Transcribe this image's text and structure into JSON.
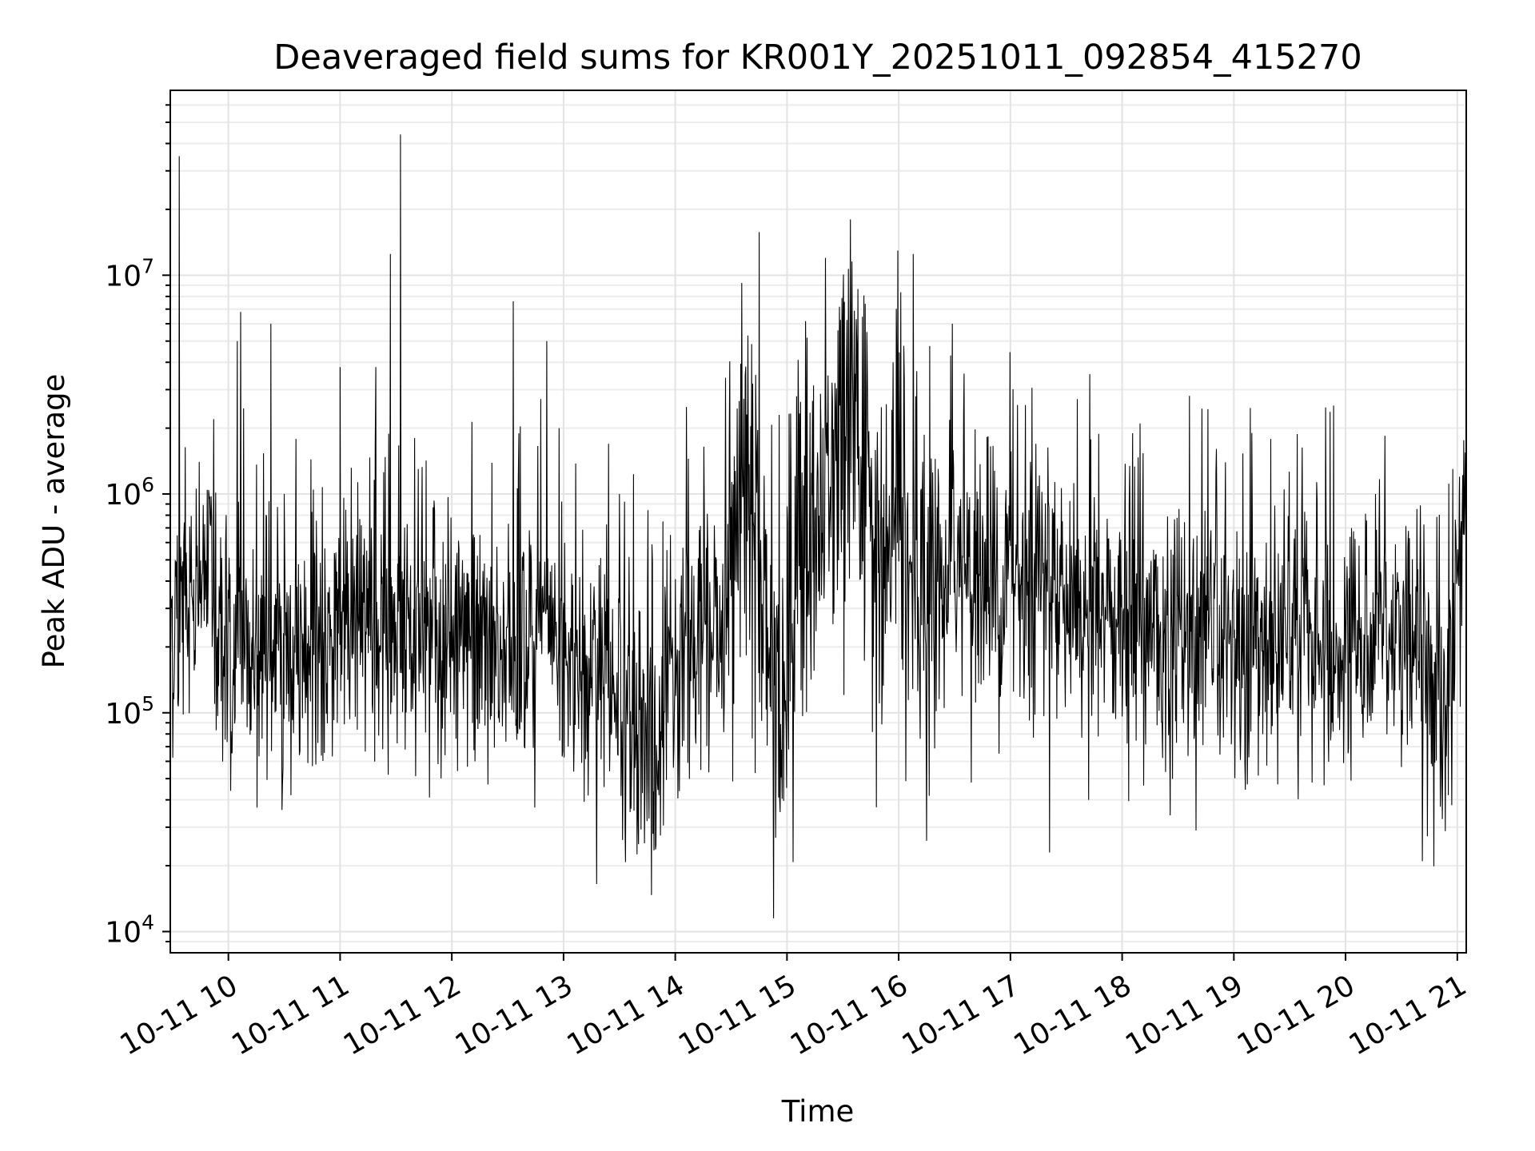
{
  "chart_data": {
    "type": "line",
    "title": "Deaveraged field sums for KR001Y_20251011_092854_415270",
    "xlabel": "Time",
    "ylabel": "Peak ADU - average",
    "yscale": "log",
    "ylim": [
      8000,
      70000000
    ],
    "xlim_hours": [
      9.48,
      21.08
    ],
    "grid": true,
    "x_ticks": [
      {
        "hour": 10,
        "label": "10-11 10"
      },
      {
        "hour": 11,
        "label": "10-11 11"
      },
      {
        "hour": 12,
        "label": "10-11 12"
      },
      {
        "hour": 13,
        "label": "10-11 13"
      },
      {
        "hour": 14,
        "label": "10-11 14"
      },
      {
        "hour": 15,
        "label": "10-11 15"
      },
      {
        "hour": 16,
        "label": "10-11 16"
      },
      {
        "hour": 17,
        "label": "10-11 17"
      },
      {
        "hour": 18,
        "label": "10-11 18"
      },
      {
        "hour": 19,
        "label": "10-11 19"
      },
      {
        "hour": 20,
        "label": "10-11 20"
      },
      {
        "hour": 21,
        "label": "10-11 21"
      }
    ],
    "y_ticks": [
      {
        "value": 10000,
        "base": "10",
        "exp": "4"
      },
      {
        "value": 100000,
        "base": "10",
        "exp": "5"
      },
      {
        "value": 1000000,
        "base": "10",
        "exp": "6"
      },
      {
        "value": 10000000,
        "base": "10",
        "exp": "7"
      }
    ],
    "series": [
      {
        "name": "Peak ADU - average",
        "color": "#000000",
        "baseline": [
          [
            9.48,
            250000
          ],
          [
            9.7,
            350000
          ],
          [
            9.85,
            500000
          ],
          [
            9.95,
            220000
          ],
          [
            10.2,
            200000
          ],
          [
            10.5,
            190000
          ],
          [
            10.8,
            200000
          ],
          [
            11.0,
            280000
          ],
          [
            11.3,
            250000
          ],
          [
            11.6,
            230000
          ],
          [
            11.9,
            190000
          ],
          [
            12.2,
            200000
          ],
          [
            12.5,
            210000
          ],
          [
            12.7,
            280000
          ],
          [
            12.9,
            200000
          ],
          [
            13.1,
            160000
          ],
          [
            13.4,
            150000
          ],
          [
            13.6,
            110000
          ],
          [
            13.8,
            70000
          ],
          [
            14.0,
            160000
          ],
          [
            14.2,
            250000
          ],
          [
            14.4,
            220000
          ],
          [
            14.6,
            800000
          ],
          [
            14.75,
            500000
          ],
          [
            14.85,
            150000
          ],
          [
            14.95,
            90000
          ],
          [
            15.1,
            450000
          ],
          [
            15.3,
            700000
          ],
          [
            15.5,
            1500000
          ],
          [
            15.65,
            1500000
          ],
          [
            15.8,
            400000
          ],
          [
            16.0,
            800000
          ],
          [
            16.2,
            250000
          ],
          [
            16.4,
            450000
          ],
          [
            16.6,
            550000
          ],
          [
            16.8,
            350000
          ],
          [
            17.0,
            450000
          ],
          [
            17.2,
            450000
          ],
          [
            17.5,
            350000
          ],
          [
            17.8,
            300000
          ],
          [
            18.0,
            250000
          ],
          [
            18.3,
            230000
          ],
          [
            18.6,
            200000
          ],
          [
            18.9,
            200000
          ],
          [
            19.2,
            200000
          ],
          [
            19.5,
            210000
          ],
          [
            19.8,
            220000
          ],
          [
            20.1,
            190000
          ],
          [
            20.3,
            350000
          ],
          [
            20.55,
            200000
          ],
          [
            20.8,
            150000
          ],
          [
            20.95,
            100000
          ],
          [
            21.0,
            500000
          ],
          [
            21.08,
            700000
          ]
        ],
        "spikes": [
          [
            9.56,
            35000000
          ],
          [
            9.6,
            600000
          ],
          [
            9.83,
            950000
          ],
          [
            10.08,
            5000000
          ],
          [
            10.11,
            6800000
          ],
          [
            10.38,
            6000000
          ],
          [
            10.5,
            1000000
          ],
          [
            10.56,
            42000
          ],
          [
            11.0,
            3800000
          ],
          [
            11.32,
            3800000
          ],
          [
            11.45,
            12500000
          ],
          [
            11.54,
            44000000
          ],
          [
            11.7,
            1300000
          ],
          [
            11.8,
            41000
          ],
          [
            12.55,
            7600000
          ],
          [
            12.85,
            5000000
          ],
          [
            12.96,
            2000000
          ],
          [
            13.5,
            1000000
          ],
          [
            13.8,
            28000
          ],
          [
            14.1,
            2500000
          ],
          [
            14.45,
            3400000
          ],
          [
            14.65,
            5300000
          ],
          [
            14.72,
            3500000
          ],
          [
            14.88,
            11500
          ],
          [
            14.93,
            2300000
          ],
          [
            15.1,
            4100000
          ],
          [
            15.5,
            6000000
          ],
          [
            15.62,
            6300000
          ],
          [
            15.7,
            7400000
          ],
          [
            15.8,
            37000
          ],
          [
            15.95,
            4000000
          ],
          [
            16.13,
            12500000
          ],
          [
            16.25,
            26000
          ],
          [
            16.48,
            6000000
          ],
          [
            16.65,
            3900000
          ],
          [
            16.65,
            48000
          ],
          [
            17.35,
            23000
          ],
          [
            17.7,
            40000
          ],
          [
            18.16,
            2100000
          ],
          [
            18.43,
            34000
          ],
          [
            19.45,
            1050000
          ],
          [
            19.7,
            48000
          ],
          [
            20.3,
            750000
          ],
          [
            20.92,
            42000
          ],
          [
            20.96,
            1300000
          ],
          [
            21.02,
            1200000
          ]
        ]
      }
    ]
  }
}
